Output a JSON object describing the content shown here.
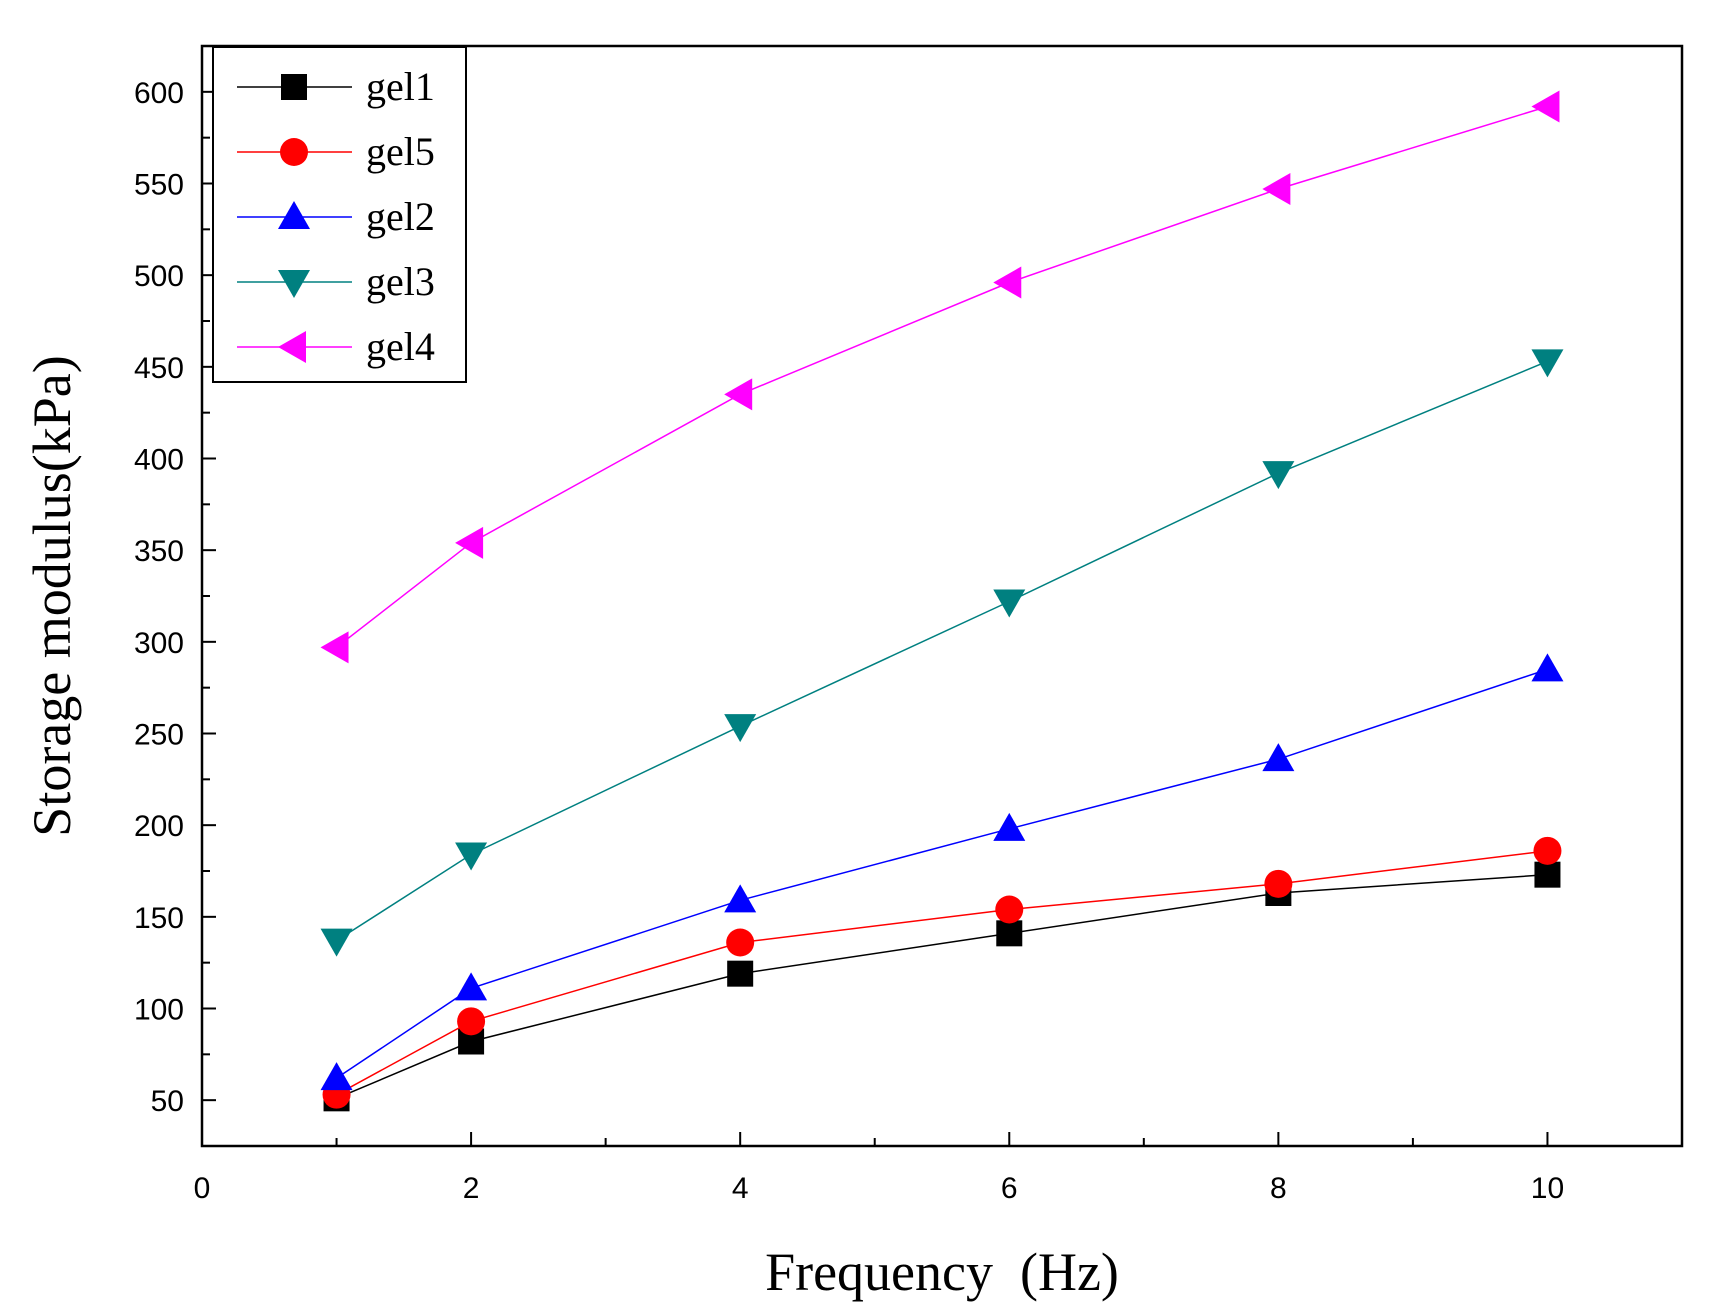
{
  "chart_data": {
    "type": "line",
    "title": "",
    "xlabel": "Frequency  (Hz)",
    "ylabel": "Storage modulus(kPa)",
    "xlim": [
      0,
      11
    ],
    "ylim": [
      25,
      625
    ],
    "xticks": [
      0,
      2,
      4,
      6,
      8,
      10
    ],
    "yticks": [
      50,
      100,
      150,
      200,
      250,
      300,
      350,
      400,
      450,
      500,
      550,
      600
    ],
    "x_tick_labels": [
      "0",
      "2",
      "4",
      "6",
      "8",
      "10"
    ],
    "y_tick_labels": [
      "50",
      "100",
      "150",
      "200",
      "250",
      "300",
      "350",
      "400",
      "450",
      "500",
      "550",
      "600"
    ],
    "grid": false,
    "legend_position": "top-left",
    "x": [
      1,
      2,
      4,
      6,
      8,
      10
    ],
    "series": [
      {
        "name": "gel1",
        "color": "#000000",
        "marker": "square",
        "values": [
          51,
          82,
          119,
          141,
          163,
          173
        ]
      },
      {
        "name": "gel5",
        "color": "#ff0000",
        "marker": "circle",
        "values": [
          53,
          93,
          136,
          154,
          168,
          186
        ]
      },
      {
        "name": "gel2",
        "color": "#0000ff",
        "marker": "triangle-up",
        "values": [
          62,
          111,
          159,
          198,
          236,
          285
        ]
      },
      {
        "name": "gel3",
        "color": "#008080",
        "marker": "triangle-down",
        "values": [
          137,
          184,
          254,
          322,
          392,
          453
        ]
      },
      {
        "name": "gel4",
        "color": "#ff00ff",
        "marker": "triangle-left",
        "values": [
          297,
          354,
          435,
          496,
          547,
          592
        ]
      }
    ]
  }
}
